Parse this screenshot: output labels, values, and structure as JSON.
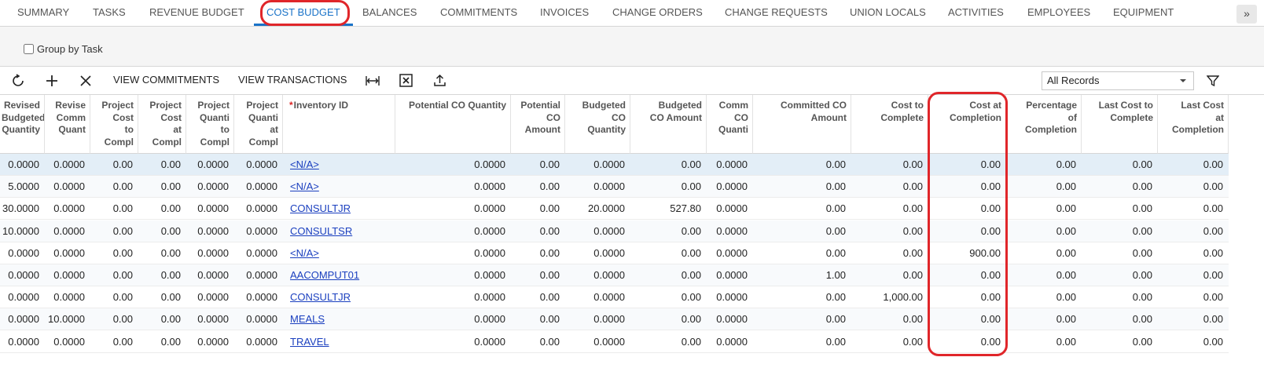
{
  "tabs": [
    "SUMMARY",
    "TASKS",
    "REVENUE BUDGET",
    "COST BUDGET",
    "BALANCES",
    "COMMITMENTS",
    "INVOICES",
    "CHANGE ORDERS",
    "CHANGE REQUESTS",
    "UNION LOCALS",
    "ACTIVITIES",
    "EMPLOYEES",
    "EQUIPMENT"
  ],
  "active_tab": 3,
  "group_by_task": "Group by Task",
  "toolbar": {
    "buttons": [
      "VIEW COMMITMENTS",
      "VIEW TRANSACTIONS"
    ],
    "filter": "All Records"
  },
  "table": {
    "columns": [
      {
        "lines": [
          "Revised",
          "Budgeted",
          "Quantity"
        ]
      },
      {
        "lines": [
          "Revise",
          "Comm",
          "Quant"
        ]
      },
      {
        "lines": [
          "Project",
          "Cost",
          "to",
          "Compl"
        ]
      },
      {
        "lines": [
          "Project",
          "Cost",
          "at",
          "Compl"
        ]
      },
      {
        "lines": [
          "Project",
          "Quanti",
          "to",
          "Compl"
        ]
      },
      {
        "lines": [
          "Project",
          "Quanti",
          "at",
          "Compl"
        ]
      },
      {
        "lines": [
          "Inventory ID"
        ],
        "required": "*",
        "link": true
      },
      {
        "lines": [
          "Potential CO Quantity"
        ]
      },
      {
        "lines": [
          "Potential",
          "CO",
          "Amount"
        ]
      },
      {
        "lines": [
          "Budgeted",
          "CO",
          "Quantity"
        ]
      },
      {
        "lines": [
          "Budgeted",
          "CO Amount"
        ]
      },
      {
        "lines": [
          "Comm",
          "CO",
          "Quanti"
        ]
      },
      {
        "lines": [
          "Committed CO",
          "Amount"
        ]
      },
      {
        "lines": [
          "Cost to",
          "Complete"
        ]
      },
      {
        "lines": [
          "Cost at",
          "Completion"
        ]
      },
      {
        "lines": [
          "Percentage",
          "of",
          "Completion"
        ]
      },
      {
        "lines": [
          "Last Cost to",
          "Complete"
        ]
      },
      {
        "lines": [
          "Last Cost",
          "at",
          "Completion"
        ]
      }
    ],
    "rows": [
      [
        "0.0000",
        "0.0000",
        "0.00",
        "0.00",
        "0.0000",
        "0.0000",
        "<N/A>",
        "0.0000",
        "0.00",
        "0.0000",
        "0.00",
        "0.0000",
        "0.00",
        "0.00",
        "0.00",
        "0.00",
        "0.00",
        "0.00"
      ],
      [
        "5.0000",
        "0.0000",
        "0.00",
        "0.00",
        "0.0000",
        "0.0000",
        "<N/A>",
        "0.0000",
        "0.00",
        "0.0000",
        "0.00",
        "0.0000",
        "0.00",
        "0.00",
        "0.00",
        "0.00",
        "0.00",
        "0.00"
      ],
      [
        "30.0000",
        "0.0000",
        "0.00",
        "0.00",
        "0.0000",
        "0.0000",
        "CONSULTJR",
        "0.0000",
        "0.00",
        "20.0000",
        "527.80",
        "0.0000",
        "0.00",
        "0.00",
        "0.00",
        "0.00",
        "0.00",
        "0.00"
      ],
      [
        "10.0000",
        "0.0000",
        "0.00",
        "0.00",
        "0.0000",
        "0.0000",
        "CONSULTSR",
        "0.0000",
        "0.00",
        "0.0000",
        "0.00",
        "0.0000",
        "0.00",
        "0.00",
        "0.00",
        "0.00",
        "0.00",
        "0.00"
      ],
      [
        "0.0000",
        "0.0000",
        "0.00",
        "0.00",
        "0.0000",
        "0.0000",
        "<N/A>",
        "0.0000",
        "0.00",
        "0.0000",
        "0.00",
        "0.0000",
        "0.00",
        "0.00",
        "900.00",
        "0.00",
        "0.00",
        "0.00"
      ],
      [
        "0.0000",
        "0.0000",
        "0.00",
        "0.00",
        "0.0000",
        "0.0000",
        "AACOMPUT01",
        "0.0000",
        "0.00",
        "0.0000",
        "0.00",
        "0.0000",
        "1.00",
        "0.00",
        "0.00",
        "0.00",
        "0.00",
        "0.00"
      ],
      [
        "0.0000",
        "0.0000",
        "0.00",
        "0.00",
        "0.0000",
        "0.0000",
        "CONSULTJR",
        "0.0000",
        "0.00",
        "0.0000",
        "0.00",
        "0.0000",
        "0.00",
        "1,000.00",
        "0.00",
        "0.00",
        "0.00",
        "0.00"
      ],
      [
        "0.0000",
        "10.0000",
        "0.00",
        "0.00",
        "0.0000",
        "0.0000",
        "MEALS",
        "0.0000",
        "0.00",
        "0.0000",
        "0.00",
        "0.0000",
        "0.00",
        "0.00",
        "0.00",
        "0.00",
        "0.00",
        "0.00"
      ],
      [
        "0.0000",
        "0.0000",
        "0.00",
        "0.00",
        "0.0000",
        "0.0000",
        "TRAVEL",
        "0.0000",
        "0.00",
        "0.0000",
        "0.00",
        "0.0000",
        "0.00",
        "0.00",
        "0.00",
        "0.00",
        "0.00",
        "0.00"
      ]
    ],
    "selected_row": 0
  }
}
